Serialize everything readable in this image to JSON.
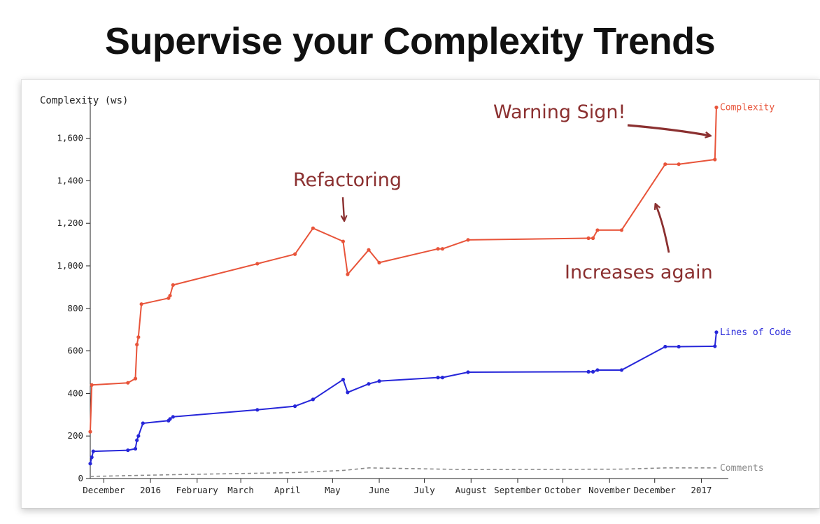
{
  "slide": {
    "title": "Supervise your Complexity Trends"
  },
  "chart_data": {
    "type": "line",
    "title": "",
    "ylabel": "Complexity (ws)",
    "xlabel": "",
    "ylim": [
      0,
      1750
    ],
    "yticks": [
      0,
      200,
      400,
      600,
      800,
      1000,
      1200,
      1400,
      1600
    ],
    "ytick_labels": [
      "0",
      "200",
      "400",
      "600",
      "800",
      "1,000",
      "1,200",
      "1,400",
      "1,600"
    ],
    "xlim": [
      "2015-11-22",
      "2017-01-18"
    ],
    "xticks": [
      {
        "date": "2015-12-01",
        "label": "December"
      },
      {
        "date": "2016-01-01",
        "label": "2016"
      },
      {
        "date": "2016-02-01",
        "label": "February"
      },
      {
        "date": "2016-03-01",
        "label": "March"
      },
      {
        "date": "2016-04-01",
        "label": "April"
      },
      {
        "date": "2016-05-01",
        "label": "May"
      },
      {
        "date": "2016-06-01",
        "label": "June"
      },
      {
        "date": "2016-07-01",
        "label": "July"
      },
      {
        "date": "2016-08-01",
        "label": "August"
      },
      {
        "date": "2016-09-01",
        "label": "September"
      },
      {
        "date": "2016-10-01",
        "label": "October"
      },
      {
        "date": "2016-11-01",
        "label": "November"
      },
      {
        "date": "2016-12-01",
        "label": "December"
      },
      {
        "date": "2017-01-01",
        "label": "2017"
      }
    ],
    "grid": false,
    "legend": "line-end labels",
    "series": [
      {
        "name": "Complexity",
        "color": "#e8543a",
        "style": "solid",
        "markers": true,
        "points": [
          {
            "x": "2015-11-22",
            "y": 220
          },
          {
            "x": "2015-11-23",
            "y": 440
          },
          {
            "x": "2015-12-17",
            "y": 450
          },
          {
            "x": "2015-12-22",
            "y": 470
          },
          {
            "x": "2015-12-23",
            "y": 630
          },
          {
            "x": "2015-12-24",
            "y": 665
          },
          {
            "x": "2015-12-26",
            "y": 820
          },
          {
            "x": "2016-01-13",
            "y": 848
          },
          {
            "x": "2016-01-14",
            "y": 860
          },
          {
            "x": "2016-01-16",
            "y": 910
          },
          {
            "x": "2016-03-12",
            "y": 1010
          },
          {
            "x": "2016-04-06",
            "y": 1055
          },
          {
            "x": "2016-04-18",
            "y": 1177
          },
          {
            "x": "2016-05-08",
            "y": 1115
          },
          {
            "x": "2016-05-11",
            "y": 960
          },
          {
            "x": "2016-05-25",
            "y": 1075
          },
          {
            "x": "2016-06-01",
            "y": 1015
          },
          {
            "x": "2016-07-10",
            "y": 1080
          },
          {
            "x": "2016-07-13",
            "y": 1080
          },
          {
            "x": "2016-07-30",
            "y": 1122
          },
          {
            "x": "2016-10-18",
            "y": 1130
          },
          {
            "x": "2016-10-21",
            "y": 1130
          },
          {
            "x": "2016-10-24",
            "y": 1168
          },
          {
            "x": "2016-11-09",
            "y": 1168
          },
          {
            "x": "2016-12-08",
            "y": 1478
          },
          {
            "x": "2016-12-17",
            "y": 1478
          },
          {
            "x": "2017-01-10",
            "y": 1500
          },
          {
            "x": "2017-01-11",
            "y": 1745
          }
        ]
      },
      {
        "name": "Lines of Code",
        "color": "#2626d9",
        "style": "solid",
        "markers": true,
        "points": [
          {
            "x": "2015-11-22",
            "y": 70
          },
          {
            "x": "2015-11-23",
            "y": 100
          },
          {
            "x": "2015-11-24",
            "y": 128
          },
          {
            "x": "2015-12-17",
            "y": 133
          },
          {
            "x": "2015-12-22",
            "y": 140
          },
          {
            "x": "2015-12-23",
            "y": 180
          },
          {
            "x": "2015-12-24",
            "y": 200
          },
          {
            "x": "2015-12-27",
            "y": 260
          },
          {
            "x": "2016-01-13",
            "y": 272
          },
          {
            "x": "2016-01-14",
            "y": 280
          },
          {
            "x": "2016-01-16",
            "y": 290
          },
          {
            "x": "2016-03-12",
            "y": 323
          },
          {
            "x": "2016-04-06",
            "y": 340
          },
          {
            "x": "2016-04-18",
            "y": 372
          },
          {
            "x": "2016-05-08",
            "y": 465
          },
          {
            "x": "2016-05-11",
            "y": 405
          },
          {
            "x": "2016-05-25",
            "y": 445
          },
          {
            "x": "2016-06-01",
            "y": 458
          },
          {
            "x": "2016-07-10",
            "y": 475
          },
          {
            "x": "2016-07-13",
            "y": 475
          },
          {
            "x": "2016-07-30",
            "y": 500
          },
          {
            "x": "2016-10-18",
            "y": 502
          },
          {
            "x": "2016-10-21",
            "y": 502
          },
          {
            "x": "2016-10-24",
            "y": 510
          },
          {
            "x": "2016-11-09",
            "y": 510
          },
          {
            "x": "2016-12-08",
            "y": 620
          },
          {
            "x": "2016-12-17",
            "y": 620
          },
          {
            "x": "2017-01-10",
            "y": 622
          },
          {
            "x": "2017-01-11",
            "y": 688
          }
        ]
      },
      {
        "name": "Comments",
        "color": "#8a8a8a",
        "style": "dashed",
        "markers": false,
        "points": [
          {
            "x": "2015-11-22",
            "y": 10
          },
          {
            "x": "2016-01-16",
            "y": 18
          },
          {
            "x": "2016-04-06",
            "y": 28
          },
          {
            "x": "2016-05-08",
            "y": 38
          },
          {
            "x": "2016-05-25",
            "y": 50
          },
          {
            "x": "2016-07-30",
            "y": 42
          },
          {
            "x": "2016-11-09",
            "y": 44
          },
          {
            "x": "2016-12-08",
            "y": 50
          },
          {
            "x": "2017-01-11",
            "y": 50
          }
        ]
      }
    ],
    "annotations": [
      {
        "name": "annotation-refactoring",
        "text": "Refactoring"
      },
      {
        "name": "annotation-warning-sign",
        "text": "Warning Sign!"
      },
      {
        "name": "annotation-increases-again",
        "text": "Increases again"
      }
    ],
    "annotation_color": "#8b3030"
  }
}
